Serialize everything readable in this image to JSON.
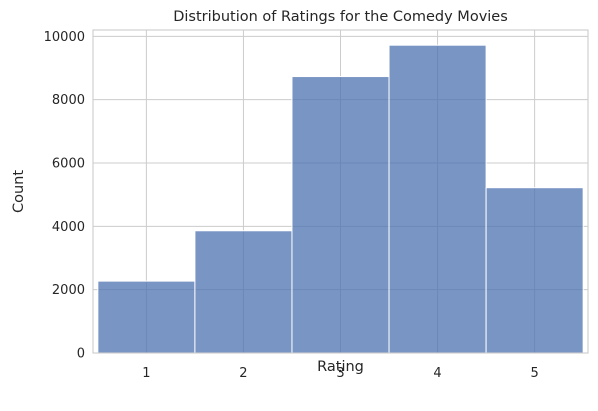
{
  "chart_data": {
    "type": "bar",
    "title": "Distribution of Ratings for the Comedy Movies",
    "xlabel": "Rating",
    "ylabel": "Count",
    "categories": [
      "1",
      "2",
      "3",
      "4",
      "5"
    ],
    "values": [
      2270,
      3860,
      8730,
      9720,
      5220
    ],
    "xlim": [
      0.45,
      5.55
    ],
    "ylim": [
      0,
      10200
    ],
    "yticks": [
      0,
      2000,
      4000,
      6000,
      8000,
      10000
    ],
    "xticks": [
      1,
      2,
      3,
      4,
      5
    ],
    "bar_color": "#4C72B0",
    "bar_opacity": 0.75,
    "grid": true,
    "legend": "none"
  }
}
